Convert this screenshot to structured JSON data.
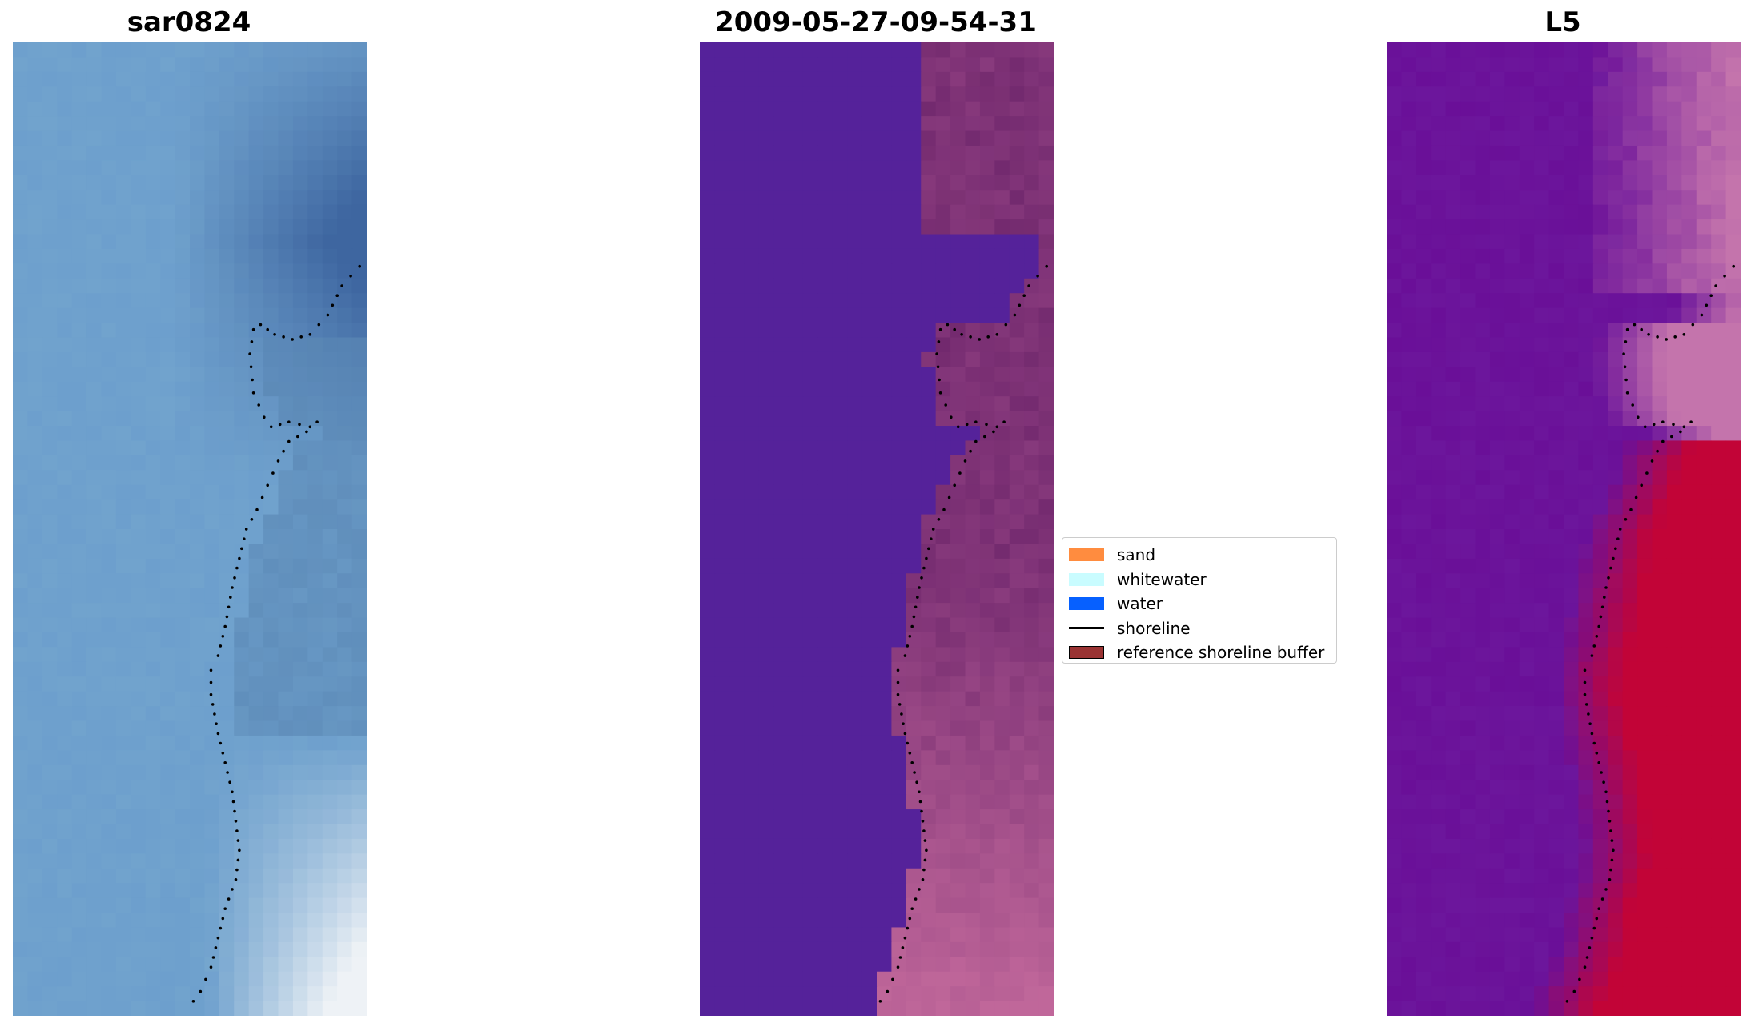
{
  "panels": [
    {
      "id": "rgb",
      "title": "sar0824"
    },
    {
      "id": "classified",
      "title": "2009-05-27-09-54-31"
    },
    {
      "id": "index",
      "title": "L5"
    }
  ],
  "legend": {
    "items": [
      {
        "label": "sand",
        "type": "patch",
        "color": "#ff8c3f",
        "edge": "none"
      },
      {
        "label": "whitewater",
        "type": "patch",
        "color": "#c9fcff",
        "edge": "none"
      },
      {
        "label": "water",
        "type": "patch",
        "color": "#0660ff",
        "edge": "none"
      },
      {
        "label": "shoreline",
        "type": "line",
        "color": "#000000"
      },
      {
        "label": "reference shoreline buffer",
        "type": "patch",
        "color": "#9a3333",
        "edge": "#000000"
      }
    ]
  },
  "colors": {
    "rgb_water": "#6d9fcd",
    "rgb_dark": "#3e66a0",
    "rgb_white": "#eef2f6",
    "classified_water": "#55229a",
    "classified_land_dark": "#72296e",
    "classified_land_light": "#c0679a",
    "index_low": "#6a0f98",
    "index_mid": "#c474ac",
    "index_high": "#c20437",
    "shoreline": "#000000"
  }
}
